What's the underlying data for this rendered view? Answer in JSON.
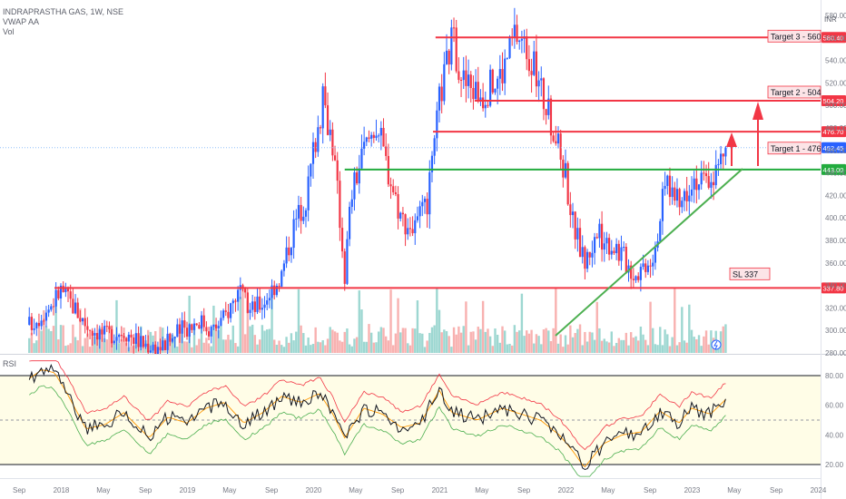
{
  "header": {
    "symbol_line": "INDRAPRASTHA GAS, 1W, NSE",
    "vwap_label": "VWAP AA",
    "vol_label": "Vol",
    "rsi_label": "RSI",
    "currency": "INR"
  },
  "chart_data": {
    "type": "candlestick",
    "symbol": "INDRAPRASTHA GAS",
    "interval": "1W",
    "exchange": "NSE",
    "price_axis": {
      "ticks": [
        280,
        300,
        320,
        340,
        360,
        380,
        400,
        420,
        440,
        460,
        480,
        500,
        520,
        540,
        560,
        580
      ],
      "ylim": [
        280,
        585
      ]
    },
    "time_axis": {
      "labels": [
        "Sep",
        "2018",
        "May",
        "Sep",
        "2019",
        "May",
        "Sep",
        "2020",
        "May",
        "Sep",
        "2021",
        "May",
        "Sep",
        "2022",
        "May",
        "Sep",
        "2023",
        "May",
        "Sep",
        "2024"
      ]
    },
    "horizontal_levels": [
      {
        "value": 560.4,
        "label": "560.40",
        "color": "#f23645"
      },
      {
        "value": 504.2,
        "label": "504.20",
        "color": "#f23645"
      },
      {
        "value": 476.7,
        "label": "476.70",
        "color": "#f23645"
      },
      {
        "value": 462.45,
        "label": "462.45",
        "color": "#2962ff"
      },
      {
        "value": 443.0,
        "label": "443.00",
        "color": "#22ab3e"
      },
      {
        "value": 337.8,
        "label": "337.80",
        "color": "#f23645"
      }
    ],
    "annotations": [
      "Target 3  - 560",
      "Target 2  - 504",
      "Target 1  - 476",
      "SL 337"
    ],
    "price_path": [
      [
        2017.75,
        305
      ],
      [
        2017.9,
        320
      ],
      [
        2018.0,
        336
      ],
      [
        2018.1,
        322
      ],
      [
        2018.2,
        305
      ],
      [
        2018.35,
        296
      ],
      [
        2018.5,
        300
      ],
      [
        2018.65,
        288
      ],
      [
        2018.8,
        285
      ],
      [
        2018.95,
        300
      ],
      [
        2019.1,
        310
      ],
      [
        2019.2,
        300
      ],
      [
        2019.3,
        312
      ],
      [
        2019.4,
        335
      ],
      [
        2019.5,
        318
      ],
      [
        2019.6,
        325
      ],
      [
        2019.75,
        350
      ],
      [
        2019.85,
        395
      ],
      [
        2019.95,
        420
      ],
      [
        2020.0,
        460
      ],
      [
        2020.08,
        505
      ],
      [
        2020.15,
        470
      ],
      [
        2020.2,
        415
      ],
      [
        2020.25,
        350
      ],
      [
        2020.3,
        420
      ],
      [
        2020.4,
        460
      ],
      [
        2020.5,
        485
      ],
      [
        2020.6,
        440
      ],
      [
        2020.7,
        400
      ],
      [
        2020.8,
        390
      ],
      [
        2020.9,
        410
      ],
      [
        2020.95,
        450
      ],
      [
        2021.0,
        505
      ],
      [
        2021.1,
        560
      ],
      [
        2021.2,
        520
      ],
      [
        2021.35,
        510
      ],
      [
        2021.5,
        530
      ],
      [
        2021.6,
        565
      ],
      [
        2021.7,
        550
      ],
      [
        2021.8,
        515
      ],
      [
        2021.9,
        480
      ],
      [
        2022.0,
        440
      ],
      [
        2022.05,
        400
      ],
      [
        2022.15,
        360
      ],
      [
        2022.25,
        385
      ],
      [
        2022.4,
        375
      ],
      [
        2022.55,
        350
      ],
      [
        2022.7,
        370
      ],
      [
        2022.8,
        435
      ],
      [
        2022.9,
        410
      ],
      [
        2023.0,
        438
      ],
      [
        2023.1,
        430
      ],
      [
        2023.2,
        442
      ],
      [
        2023.27,
        462.45
      ]
    ],
    "volume": {
      "series_name": "Vol"
    },
    "rsi": {
      "levels": [
        80,
        60,
        40,
        20
      ],
      "band_upper": 80,
      "band_lower": 20,
      "mid": 50,
      "path": [
        [
          2017.75,
          78
        ],
        [
          2017.85,
          84
        ],
        [
          2017.95,
          82
        ],
        [
          2018.05,
          68
        ],
        [
          2018.2,
          44
        ],
        [
          2018.35,
          47
        ],
        [
          2018.5,
          55
        ],
        [
          2018.7,
          38
        ],
        [
          2018.85,
          52
        ],
        [
          2019.0,
          48
        ],
        [
          2019.15,
          58
        ],
        [
          2019.3,
          62
        ],
        [
          2019.45,
          48
        ],
        [
          2019.6,
          55
        ],
        [
          2019.75,
          66
        ],
        [
          2019.9,
          62
        ],
        [
          2020.05,
          68
        ],
        [
          2020.15,
          55
        ],
        [
          2020.25,
          38
        ],
        [
          2020.4,
          58
        ],
        [
          2020.55,
          54
        ],
        [
          2020.7,
          45
        ],
        [
          2020.85,
          48
        ],
        [
          2021.0,
          70
        ],
        [
          2021.1,
          55
        ],
        [
          2021.3,
          50
        ],
        [
          2021.5,
          58
        ],
        [
          2021.65,
          54
        ],
        [
          2021.8,
          50
        ],
        [
          2021.95,
          40
        ],
        [
          2022.05,
          30
        ],
        [
          2022.15,
          18
        ],
        [
          2022.3,
          34
        ],
        [
          2022.45,
          40
        ],
        [
          2022.6,
          42
        ],
        [
          2022.75,
          56
        ],
        [
          2022.9,
          48
        ],
        [
          2023.0,
          58
        ],
        [
          2023.15,
          54
        ],
        [
          2023.27,
          64
        ]
      ]
    }
  }
}
